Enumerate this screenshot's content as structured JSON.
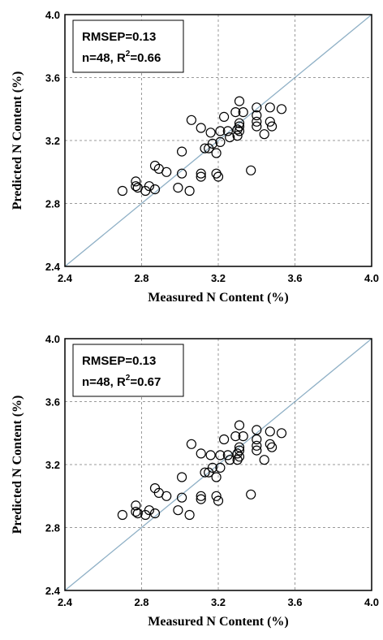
{
  "chart_data": [
    {
      "type": "scatter",
      "xlabel": "Measured N Content (%)",
      "ylabel": "Predicted N Content (%)",
      "xlim": [
        2.4,
        4.0
      ],
      "ylim": [
        2.4,
        4.0
      ],
      "xticks": [
        "2.4",
        "2.8",
        "3.2",
        "3.6",
        "4.0"
      ],
      "yticks": [
        "2.4",
        "2.8",
        "3.2",
        "3.6",
        "4.0"
      ],
      "grid": true,
      "reference_line": "1:1",
      "stats": {
        "rmsep": "RMSEP=0.13",
        "n_r2_prefix": "n=48, R",
        "n_r2_exp": "2",
        "n_r2_value": "=0.66"
      },
      "points": [
        [
          2.7,
          2.88
        ],
        [
          2.77,
          2.91
        ],
        [
          2.77,
          2.94
        ],
        [
          2.78,
          2.9
        ],
        [
          2.82,
          2.88
        ],
        [
          2.84,
          2.91
        ],
        [
          2.87,
          2.89
        ],
        [
          2.87,
          3.04
        ],
        [
          2.89,
          3.02
        ],
        [
          2.93,
          3.0
        ],
        [
          2.99,
          2.9
        ],
        [
          3.01,
          2.99
        ],
        [
          3.01,
          3.13
        ],
        [
          3.05,
          2.88
        ],
        [
          3.06,
          3.33
        ],
        [
          3.11,
          2.99
        ],
        [
          3.11,
          2.97
        ],
        [
          3.11,
          3.28
        ],
        [
          3.13,
          3.15
        ],
        [
          3.15,
          3.15
        ],
        [
          3.16,
          3.25
        ],
        [
          3.17,
          3.18
        ],
        [
          3.19,
          2.99
        ],
        [
          3.19,
          3.12
        ],
        [
          3.2,
          2.97
        ],
        [
          3.21,
          3.19
        ],
        [
          3.21,
          3.26
        ],
        [
          3.23,
          3.35
        ],
        [
          3.25,
          3.26
        ],
        [
          3.26,
          3.22
        ],
        [
          3.29,
          3.38
        ],
        [
          3.3,
          3.23
        ],
        [
          3.3,
          3.27
        ],
        [
          3.31,
          3.45
        ],
        [
          3.31,
          3.31
        ],
        [
          3.31,
          3.29
        ],
        [
          3.31,
          3.26
        ],
        [
          3.33,
          3.38
        ],
        [
          3.37,
          3.01
        ],
        [
          3.4,
          3.41
        ],
        [
          3.4,
          3.32
        ],
        [
          3.4,
          3.29
        ],
        [
          3.4,
          3.36
        ],
        [
          3.44,
          3.24
        ],
        [
          3.47,
          3.41
        ],
        [
          3.47,
          3.32
        ],
        [
          3.48,
          3.29
        ],
        [
          3.53,
          3.4
        ]
      ]
    },
    {
      "type": "scatter",
      "xlabel": "Measured N Content (%)",
      "ylabel": "Predicted N Content (%)",
      "xlim": [
        2.4,
        4.0
      ],
      "ylim": [
        2.4,
        4.0
      ],
      "xticks": [
        "2.4",
        "2.8",
        "3.2",
        "3.6",
        "4.0"
      ],
      "yticks": [
        "2.4",
        "2.8",
        "3.2",
        "3.6",
        "4.0"
      ],
      "grid": true,
      "reference_line": "1:1",
      "stats": {
        "rmsep": "RMSEP=0.13",
        "n_r2_prefix": "n=48, R",
        "n_r2_exp": "2",
        "n_r2_value": "=0.67"
      },
      "points": [
        [
          2.7,
          2.88
        ],
        [
          2.77,
          2.9
        ],
        [
          2.77,
          2.94
        ],
        [
          2.78,
          2.89
        ],
        [
          2.82,
          2.88
        ],
        [
          2.84,
          2.91
        ],
        [
          2.87,
          2.89
        ],
        [
          2.87,
          3.05
        ],
        [
          2.89,
          3.02
        ],
        [
          2.93,
          3.0
        ],
        [
          2.99,
          2.91
        ],
        [
          3.01,
          2.99
        ],
        [
          3.01,
          3.12
        ],
        [
          3.05,
          2.88
        ],
        [
          3.06,
          3.33
        ],
        [
          3.11,
          3.0
        ],
        [
          3.11,
          2.98
        ],
        [
          3.11,
          3.27
        ],
        [
          3.13,
          3.15
        ],
        [
          3.15,
          3.15
        ],
        [
          3.16,
          3.26
        ],
        [
          3.17,
          3.18
        ],
        [
          3.19,
          3.0
        ],
        [
          3.19,
          3.12
        ],
        [
          3.2,
          2.97
        ],
        [
          3.21,
          3.18
        ],
        [
          3.21,
          3.26
        ],
        [
          3.23,
          3.36
        ],
        [
          3.25,
          3.26
        ],
        [
          3.26,
          3.23
        ],
        [
          3.29,
          3.38
        ],
        [
          3.3,
          3.23
        ],
        [
          3.3,
          3.27
        ],
        [
          3.31,
          3.45
        ],
        [
          3.31,
          3.31
        ],
        [
          3.31,
          3.29
        ],
        [
          3.31,
          3.25
        ],
        [
          3.33,
          3.38
        ],
        [
          3.37,
          3.01
        ],
        [
          3.4,
          3.42
        ],
        [
          3.4,
          3.32
        ],
        [
          3.4,
          3.29
        ],
        [
          3.4,
          3.36
        ],
        [
          3.44,
          3.23
        ],
        [
          3.47,
          3.41
        ],
        [
          3.47,
          3.33
        ],
        [
          3.48,
          3.31
        ],
        [
          3.53,
          3.4
        ]
      ]
    }
  ]
}
